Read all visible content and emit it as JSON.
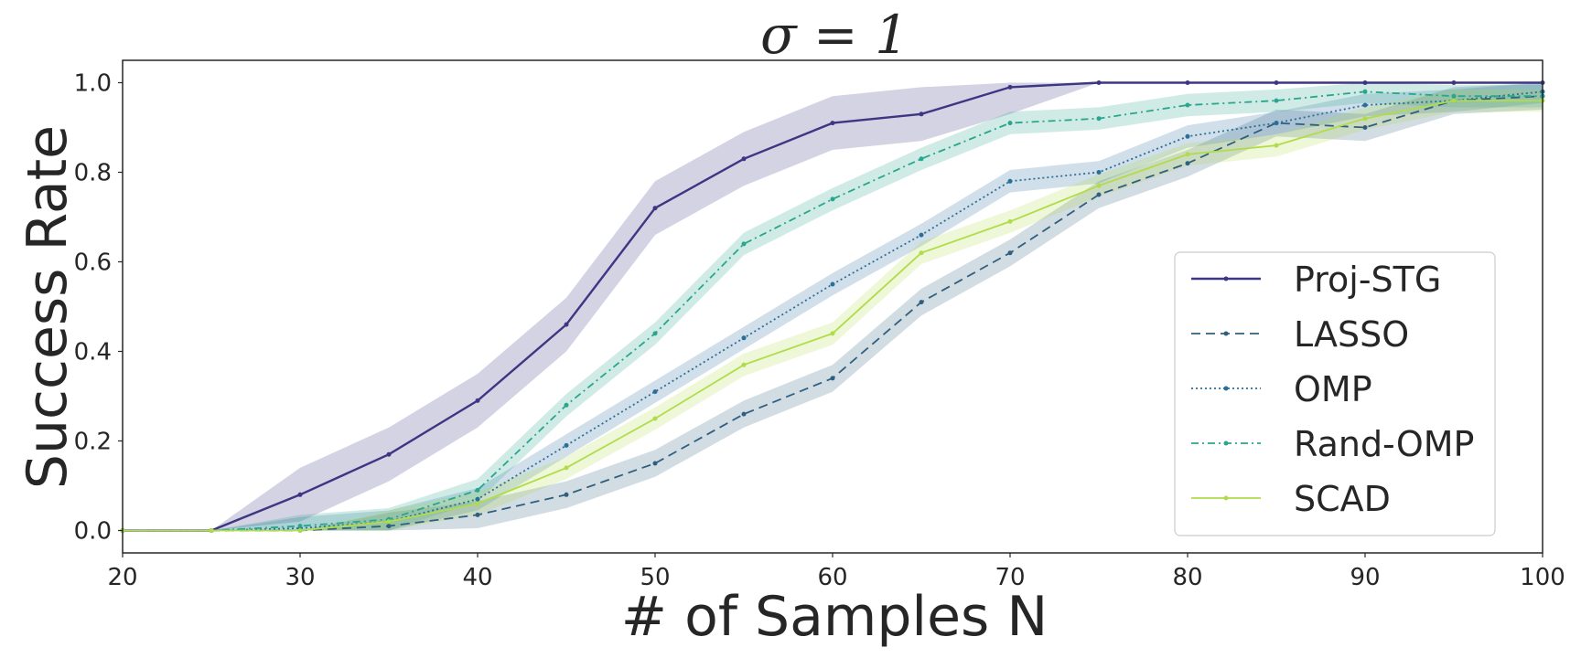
{
  "chart_data": {
    "type": "line",
    "title": "σ = 1",
    "xlabel": "# of Samples N",
    "ylabel": "Success Rate",
    "xlim": [
      20,
      100
    ],
    "ylim": [
      -0.05,
      1.05
    ],
    "xticks": [
      20,
      30,
      40,
      50,
      60,
      70,
      80,
      90,
      100
    ],
    "yticks": [
      0.0,
      0.2,
      0.4,
      0.6,
      0.8,
      1.0
    ],
    "x_tick_labels": [
      "20",
      "30",
      "40",
      "50",
      "60",
      "70",
      "80",
      "90",
      "100"
    ],
    "y_tick_labels": [
      "0.0",
      "0.2",
      "0.4",
      "0.6",
      "0.8",
      "1.0"
    ],
    "x": [
      20,
      25,
      30,
      35,
      40,
      45,
      50,
      55,
      60,
      65,
      70,
      75,
      80,
      85,
      90,
      95,
      100
    ],
    "grid": false,
    "legend_position": "lower-right",
    "series": [
      {
        "name": "Proj-STG",
        "color": "#3d3682",
        "dash": "solid",
        "band": 0.06,
        "values": [
          0.0,
          0.0,
          0.08,
          0.17,
          0.29,
          0.46,
          0.72,
          0.83,
          0.91,
          0.93,
          0.99,
          1.0,
          1.0,
          1.0,
          1.0,
          1.0,
          1.0
        ]
      },
      {
        "name": "LASSO",
        "color": "#2f5f7f",
        "dash": "dashed",
        "band": 0.03,
        "values": [
          0.0,
          0.0,
          0.0,
          0.01,
          0.035,
          0.08,
          0.15,
          0.26,
          0.34,
          0.51,
          0.62,
          0.75,
          0.82,
          0.91,
          0.9,
          0.96,
          0.97
        ]
      },
      {
        "name": "OMP",
        "color": "#2a6f9a",
        "dash": "dotted",
        "band": 0.025,
        "values": [
          0.0,
          0.0,
          0.005,
          0.02,
          0.07,
          0.19,
          0.31,
          0.43,
          0.55,
          0.66,
          0.78,
          0.8,
          0.88,
          0.91,
          0.95,
          0.96,
          0.98
        ]
      },
      {
        "name": "Rand-OMP",
        "color": "#29a68e",
        "dash": "dashdot",
        "band": 0.025,
        "values": [
          0.0,
          0.0,
          0.01,
          0.025,
          0.09,
          0.28,
          0.44,
          0.64,
          0.74,
          0.83,
          0.91,
          0.92,
          0.95,
          0.96,
          0.98,
          0.97,
          0.97
        ]
      },
      {
        "name": "SCAD",
        "color": "#b0dc4a",
        "dash": "solid",
        "band": 0.025,
        "values": [
          0.0,
          0.0,
          0.0,
          0.02,
          0.06,
          0.14,
          0.25,
          0.37,
          0.44,
          0.62,
          0.69,
          0.77,
          0.84,
          0.86,
          0.92,
          0.96,
          0.96
        ]
      }
    ]
  }
}
